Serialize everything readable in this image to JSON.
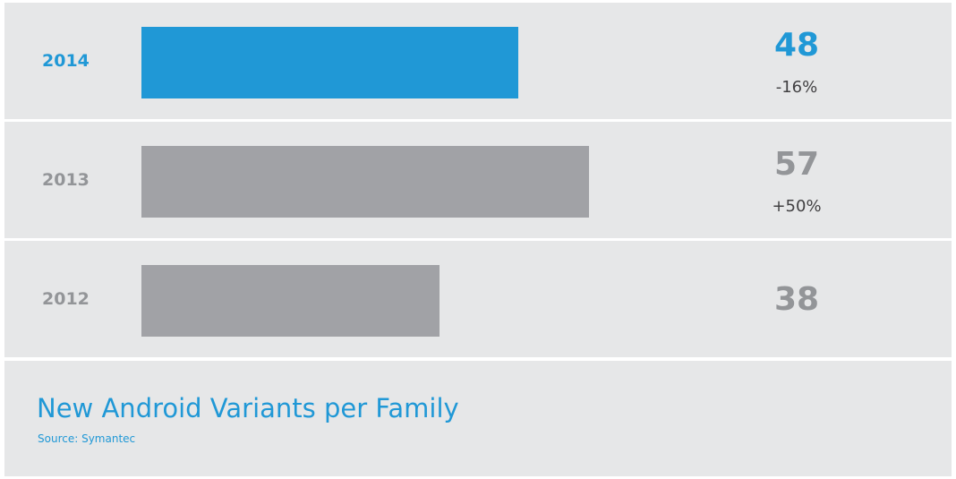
{
  "chart_data": {
    "type": "bar",
    "orientation": "horizontal",
    "title": "New Android Variants per Family",
    "source": "Source: Symantec",
    "categories": [
      "2014",
      "2013",
      "2012"
    ],
    "values": [
      48,
      57,
      38
    ],
    "value_labels": [
      "48",
      "57",
      "38"
    ],
    "changes": [
      "-16%",
      "+50%",
      ""
    ],
    "highlight_index": 0,
    "colors": {
      "highlight": "#2098d6",
      "default": "#a1a2a6"
    }
  }
}
